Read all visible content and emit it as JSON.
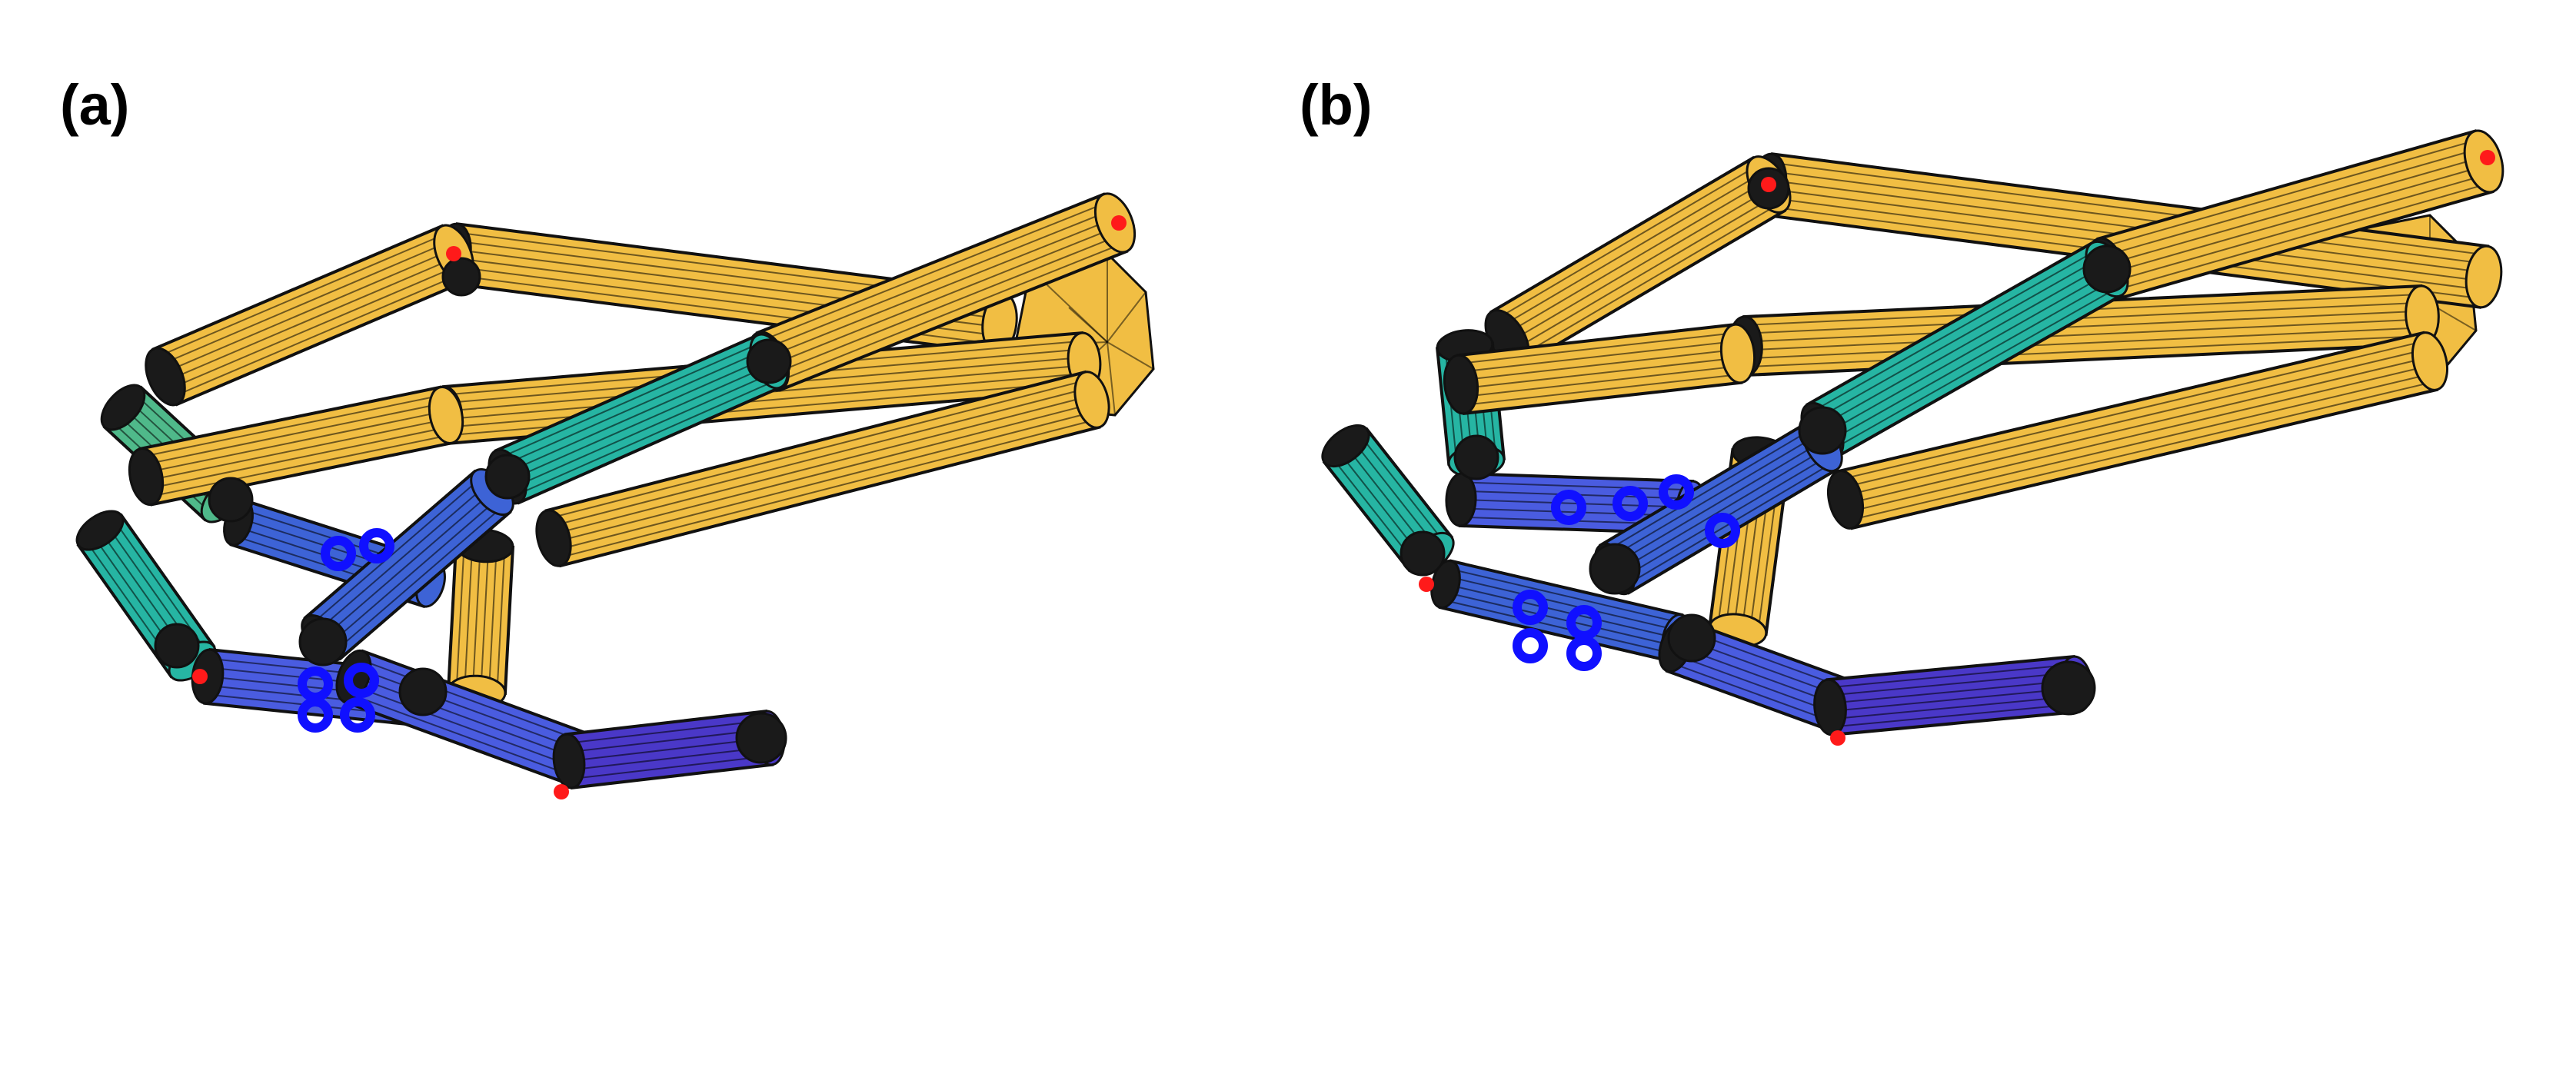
{
  "panels": [
    {
      "label": "(a)",
      "description_name": "hand-model-a"
    },
    {
      "label": "(b)",
      "description_name": "hand-model-b"
    }
  ],
  "colors": {
    "yellow": "#f1be43",
    "yellow_dark": "#e7ad2f",
    "teal": "#26b5a3",
    "teal_green": "#4fb98a",
    "blue": "#3d63d6",
    "blue_mid": "#4a5ce0",
    "indigo": "#4a38c8",
    "contact_blue": "#1010ff",
    "joint_red": "#ff1a1a",
    "outline": "#111111"
  }
}
